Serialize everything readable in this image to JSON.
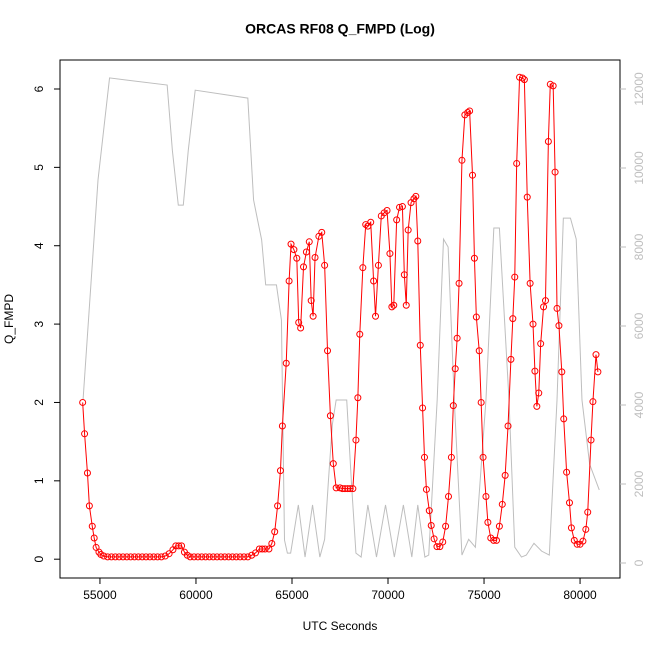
{
  "chart_data": {
    "type": "line",
    "title": "ORCAS RF08 Q_FMPD (Log)",
    "xlabel": "UTC Seconds",
    "ylabel": "Q_FMPD",
    "xlim": [
      52920,
      82080
    ],
    "xticks": [
      55000,
      60000,
      65000,
      70000,
      75000,
      80000
    ],
    "ylim": [
      -0.24,
      6.37
    ],
    "yticks": [
      0,
      1,
      2,
      3,
      4,
      5,
      6
    ],
    "y2lim": [
      -380,
      12734
    ],
    "y2ticks": [
      0,
      2000,
      4000,
      6000,
      8000,
      10000,
      12000
    ],
    "grid": false,
    "series": [
      {
        "color": "#bebebe",
        "axis": "y2",
        "marker": "none",
        "x": [
          54120,
          54900,
          55500,
          58500,
          58770,
          59080,
          59340,
          59600,
          59960,
          62700,
          63000,
          63210,
          63420,
          63630,
          64190,
          64450,
          64610,
          64760,
          64930,
          65330,
          65680,
          66070,
          66450,
          66700,
          66900,
          67100,
          67300,
          67500,
          67850,
          68100,
          68330,
          68600,
          68950,
          69400,
          69870,
          70330,
          70800,
          71240,
          71550,
          71920,
          72120,
          72300,
          72560,
          72890,
          73130,
          73450,
          73850,
          74200,
          74550,
          75100,
          75510,
          75800,
          76300,
          76600,
          76950,
          77200,
          77600,
          78000,
          78400,
          78800,
          79130,
          79500,
          79800,
          80100,
          80500,
          81000
        ],
        "values": [
          4127,
          9700,
          12280,
          12100,
          10450,
          9060,
          9060,
          10450,
          11970,
          11770,
          9190,
          8680,
          8180,
          7040,
          7040,
          6150,
          580,
          250,
          250,
          1470,
          150,
          1470,
          150,
          600,
          2100,
          3500,
          4127,
          4127,
          4127,
          2000,
          250,
          150,
          1470,
          150,
          1470,
          150,
          1470,
          150,
          1470,
          150,
          200,
          1800,
          4127,
          8200,
          8000,
          4127,
          200,
          600,
          400,
          4127,
          8480,
          8480,
          4127,
          400,
          150,
          200,
          500,
          300,
          200,
          4127,
          8730,
          8730,
          8200,
          4127,
          2500,
          1850
        ]
      },
      {
        "color": "#ff0000",
        "axis": "y",
        "marker": "circle",
        "x": [
          54100,
          54200,
          54350,
          54450,
          54600,
          54700,
          54800,
          54950,
          55050,
          55200,
          55400,
          55600,
          55800,
          56000,
          56200,
          56400,
          56600,
          56800,
          57000,
          57200,
          57400,
          57600,
          57800,
          58000,
          58200,
          58400,
          58600,
          58800,
          58950,
          59100,
          59250,
          59400,
          59550,
          59700,
          59900,
          60100,
          60300,
          60500,
          60700,
          60900,
          61100,
          61300,
          61500,
          61700,
          61900,
          62100,
          62300,
          62500,
          62700,
          62900,
          63100,
          63300,
          63450,
          63600,
          63800,
          63950,
          64100,
          64250,
          64400,
          64500,
          64700,
          64850,
          64950,
          65100,
          65250,
          65350,
          65450,
          65600,
          65750,
          65900,
          66000,
          66100,
          66200,
          66400,
          66550,
          66700,
          66850,
          67000,
          67150,
          67300,
          67500,
          67630,
          67760,
          67900,
          68030,
          68170,
          68330,
          68430,
          68530,
          68690,
          68840,
          68950,
          69100,
          69250,
          69350,
          69500,
          69650,
          69800,
          69950,
          70100,
          70200,
          70300,
          70450,
          70600,
          70750,
          70850,
          70950,
          71050,
          71200,
          71350,
          71450,
          71550,
          71680,
          71800,
          71900,
          72000,
          72150,
          72250,
          72400,
          72550,
          72700,
          72850,
          73000,
          73150,
          73300,
          73400,
          73500,
          73600,
          73700,
          73850,
          74000,
          74150,
          74250,
          74400,
          74500,
          74600,
          74750,
          74850,
          74950,
          75100,
          75200,
          75350,
          75500,
          75650,
          75800,
          75950,
          76100,
          76250,
          76400,
          76500,
          76600,
          76700,
          76850,
          77000,
          77100,
          77250,
          77400,
          77550,
          77650,
          77750,
          77850,
          77950,
          78100,
          78200,
          78350,
          78450,
          78600,
          78700,
          78800,
          78900,
          79050,
          79150,
          79300,
          79450,
          79550,
          79700,
          79850,
          80000,
          80150,
          80300,
          80400,
          80570,
          80670,
          80830,
          80930
        ],
        "values": [
          2.0,
          1.6,
          1.1,
          0.68,
          0.42,
          0.27,
          0.15,
          0.09,
          0.06,
          0.04,
          0.03,
          0.03,
          0.03,
          0.03,
          0.03,
          0.03,
          0.03,
          0.03,
          0.03,
          0.03,
          0.03,
          0.03,
          0.03,
          0.03,
          0.03,
          0.04,
          0.07,
          0.12,
          0.17,
          0.17,
          0.17,
          0.09,
          0.05,
          0.03,
          0.03,
          0.03,
          0.03,
          0.03,
          0.03,
          0.03,
          0.03,
          0.03,
          0.03,
          0.03,
          0.03,
          0.03,
          0.03,
          0.03,
          0.03,
          0.05,
          0.08,
          0.13,
          0.13,
          0.13,
          0.13,
          0.2,
          0.35,
          0.68,
          1.13,
          1.7,
          2.5,
          3.55,
          4.02,
          3.95,
          3.84,
          3.02,
          2.95,
          3.73,
          3.92,
          4.05,
          3.3,
          3.1,
          3.85,
          4.12,
          4.17,
          3.75,
          2.66,
          1.83,
          1.22,
          0.91,
          0.91,
          0.9,
          0.9,
          0.9,
          0.9,
          0.9,
          1.52,
          2.06,
          2.87,
          3.72,
          4.27,
          4.25,
          4.3,
          3.55,
          3.1,
          3.75,
          4.38,
          4.42,
          4.45,
          3.9,
          3.22,
          3.24,
          4.33,
          4.49,
          4.5,
          3.63,
          3.24,
          4.2,
          4.55,
          4.6,
          4.63,
          4.06,
          2.73,
          1.93,
          1.3,
          0.89,
          0.62,
          0.43,
          0.26,
          0.16,
          0.16,
          0.22,
          0.42,
          0.8,
          1.3,
          1.96,
          2.43,
          2.82,
          3.52,
          5.09,
          5.67,
          5.7,
          5.72,
          4.9,
          3.84,
          3.09,
          2.66,
          2.0,
          1.3,
          0.8,
          0.47,
          0.27,
          0.24,
          0.24,
          0.42,
          0.7,
          1.07,
          1.7,
          2.55,
          3.07,
          3.6,
          5.05,
          6.15,
          6.14,
          6.12,
          4.62,
          3.52,
          3.0,
          2.4,
          1.95,
          2.12,
          2.75,
          3.22,
          3.3,
          5.33,
          6.06,
          6.04,
          4.94,
          3.2,
          2.98,
          2.39,
          1.79,
          1.11,
          0.72,
          0.4,
          0.24,
          0.19,
          0.19,
          0.23,
          0.38,
          0.6,
          1.52,
          2.01,
          2.61,
          2.39
        ]
      }
    ]
  }
}
